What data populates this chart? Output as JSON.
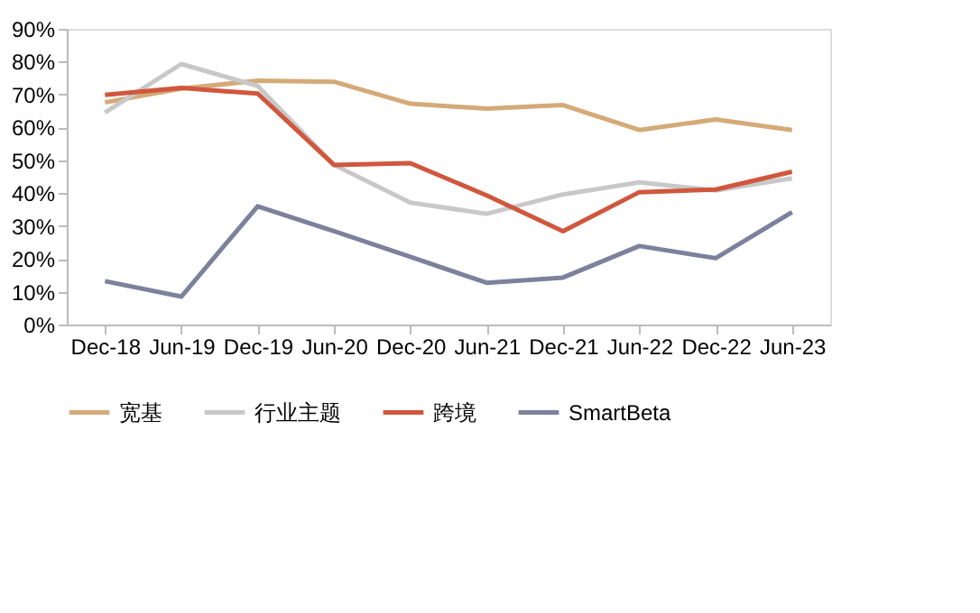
{
  "chart_data": {
    "type": "line",
    "categories": [
      "Dec-18",
      "Jun-19",
      "Dec-19",
      "Jun-20",
      "Dec-20",
      "Jun-21",
      "Dec-21",
      "Jun-22",
      "Dec-22",
      "Jun-23"
    ],
    "series": [
      {
        "name": "宽基",
        "color": "#d4aa78",
        "values": [
          67.6,
          71.8,
          74.2,
          73.9,
          67.2,
          65.7,
          66.8,
          59.2,
          62.4,
          59.2
        ]
      },
      {
        "name": "行业主题",
        "color": "#c8c8c8",
        "values": [
          64.5,
          79.3,
          72.6,
          48.6,
          37.1,
          33.7,
          39.6,
          43.3,
          40.8,
          44.5
        ]
      },
      {
        "name": "跨境",
        "color": "#d0573d",
        "values": [
          69.9,
          72.0,
          70.3,
          48.6,
          49.1,
          39.3,
          28.4,
          40.3,
          41.1,
          46.5
        ]
      },
      {
        "name": "SmartBeta",
        "color": "#7c819c",
        "values": [
          13.2,
          8.5,
          36.0,
          28.4,
          20.6,
          12.7,
          14.3,
          23.9,
          20.2,
          34.2
        ]
      }
    ],
    "ylim": [
      0,
      90
    ],
    "yticks": [
      {
        "value": 0,
        "label": "0%"
      },
      {
        "value": 10,
        "label": "10%"
      },
      {
        "value": 20,
        "label": "20%"
      },
      {
        "value": 30,
        "label": "30%"
      },
      {
        "value": 40,
        "label": "40%"
      },
      {
        "value": 50,
        "label": "50%"
      },
      {
        "value": 60,
        "label": "60%"
      },
      {
        "value": 70,
        "label": "70%"
      },
      {
        "value": 80,
        "label": "80%"
      },
      {
        "value": 90,
        "label": "90%"
      }
    ],
    "grid": false,
    "legend": "bottom",
    "marker": "none",
    "line_style": "solid"
  }
}
